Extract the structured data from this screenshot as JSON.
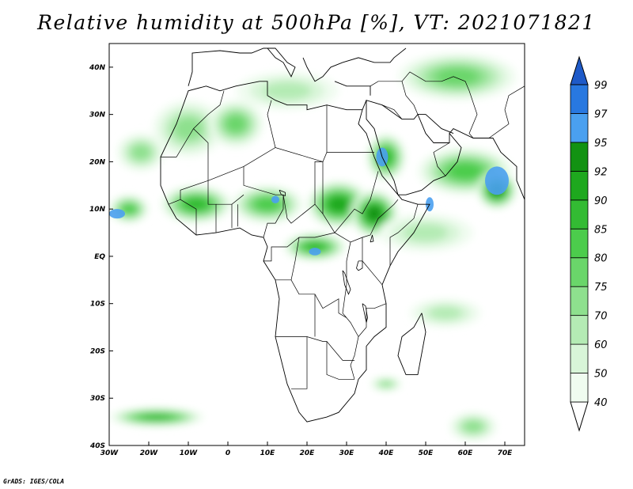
{
  "title": "Relative humidity at 500hPa [%], VT: 2021071821",
  "credit": "GrADS: IGES/COLA",
  "axes": {
    "lon_ticks": [
      {
        "value": -30,
        "label": "30W"
      },
      {
        "value": -20,
        "label": "20W"
      },
      {
        "value": -10,
        "label": "10W"
      },
      {
        "value": 0,
        "label": "0"
      },
      {
        "value": 10,
        "label": "10E"
      },
      {
        "value": 20,
        "label": "20E"
      },
      {
        "value": 30,
        "label": "30E"
      },
      {
        "value": 40,
        "label": "40E"
      },
      {
        "value": 50,
        "label": "50E"
      },
      {
        "value": 60,
        "label": "60E"
      },
      {
        "value": 70,
        "label": "70E"
      }
    ],
    "lat_ticks": [
      {
        "value": 40,
        "label": "40N"
      },
      {
        "value": 30,
        "label": "30N"
      },
      {
        "value": 20,
        "label": "20N"
      },
      {
        "value": 10,
        "label": "10N"
      },
      {
        "value": 0,
        "label": "EQ"
      },
      {
        "value": -10,
        "label": "10S"
      },
      {
        "value": -20,
        "label": "20S"
      },
      {
        "value": -30,
        "label": "30S"
      },
      {
        "value": -40,
        "label": "40S"
      }
    ],
    "lon_range": [
      -30,
      75
    ],
    "lat_range": [
      -40,
      45
    ]
  },
  "colorbar": {
    "levels": [
      {
        "label": "40",
        "color": "#f0fcf0"
      },
      {
        "label": "50",
        "color": "#d8f5d8"
      },
      {
        "label": "60",
        "color": "#b4ebb4"
      },
      {
        "label": "70",
        "color": "#8ee08e"
      },
      {
        "label": "75",
        "color": "#6ad66a"
      },
      {
        "label": "80",
        "color": "#4ccc4c"
      },
      {
        "label": "85",
        "color": "#33bb33"
      },
      {
        "label": "90",
        "color": "#1ea81e"
      },
      {
        "label": "92",
        "color": "#129212"
      },
      {
        "label": "95",
        "color": "#4aa0f0"
      },
      {
        "label": "97",
        "color": "#2878e0"
      },
      {
        "label": "99",
        "color": "#1e5ac8"
      }
    ],
    "under_color": "#ffffff",
    "over_color": "#1e5ac8"
  },
  "humidity_regions": [
    {
      "lon": 15,
      "lat": 35,
      "rlon": 13,
      "rlat": 4,
      "level": 2
    },
    {
      "lon": -10,
      "lat": 27,
      "rlon": 9,
      "rlat": 6,
      "level": 3
    },
    {
      "lon": 2,
      "lat": 28,
      "rlon": 7,
      "rlat": 5,
      "level": 4
    },
    {
      "lon": -22,
      "lat": 22,
      "rlon": 6,
      "rlat": 4,
      "level": 3
    },
    {
      "lon": -25,
      "lat": 10,
      "rlon": 5,
      "rlat": 3,
      "level": 5
    },
    {
      "lon": -8,
      "lat": 11,
      "rlon": 9,
      "rlat": 4,
      "level": 6
    },
    {
      "lon": 10,
      "lat": 11,
      "rlon": 9,
      "rlat": 4,
      "level": 5
    },
    {
      "lon": 28,
      "lat": 11,
      "rlon": 8,
      "rlat": 5,
      "level": 7
    },
    {
      "lon": 37,
      "lat": 9,
      "rlon": 6,
      "rlat": 5,
      "level": 8
    },
    {
      "lon": 22,
      "lat": 2,
      "rlon": 8,
      "rlat": 3,
      "level": 6
    },
    {
      "lon": 40,
      "lat": 21,
      "rlon": 5,
      "rlat": 5,
      "level": 6
    },
    {
      "lon": 60,
      "lat": 18,
      "rlon": 12,
      "rlat": 5,
      "level": 5
    },
    {
      "lon": 68,
      "lat": 14,
      "rlon": 5,
      "rlat": 4,
      "level": 8
    },
    {
      "lon": 50,
      "lat": 5,
      "rlon": 12,
      "rlat": 4,
      "level": 2
    },
    {
      "lon": 55,
      "lat": -12,
      "rlon": 9,
      "rlat": 3,
      "level": 2
    },
    {
      "lon": -18,
      "lat": -34,
      "rlon": 12,
      "rlat": 2,
      "level": 6
    },
    {
      "lon": 62,
      "lat": -36,
      "rlon": 6,
      "rlat": 3,
      "level": 3
    },
    {
      "lon": 40,
      "lat": -27,
      "rlon": 4,
      "rlat": 1.5,
      "level": 3
    },
    {
      "lon": 58,
      "lat": 38,
      "rlon": 15,
      "rlat": 5,
      "level": 4
    }
  ],
  "saturated_spots": [
    {
      "lon": 39,
      "lat": 21,
      "rlon": 1.5,
      "rlat": 2
    },
    {
      "lon": 68,
      "lat": 16,
      "rlon": 3,
      "rlat": 3
    },
    {
      "lon": -28,
      "lat": 9,
      "rlon": 2,
      "rlat": 1
    },
    {
      "lon": 51,
      "lat": 11,
      "rlon": 1,
      "rlat": 1.5
    },
    {
      "lon": 22,
      "lat": 1,
      "rlon": 1.5,
      "rlat": 0.8
    },
    {
      "lon": 12,
      "lat": 12,
      "rlon": 1,
      "rlat": 0.8
    }
  ],
  "coastlines": [
    [
      [
        -5.5,
        36
      ],
      [
        -10,
        35
      ],
      [
        -13,
        28
      ],
      [
        -17,
        21
      ],
      [
        -17,
        15
      ],
      [
        -15,
        11
      ],
      [
        -13,
        8
      ],
      [
        -8,
        4.5
      ],
      [
        -3,
        5
      ],
      [
        3,
        6
      ],
      [
        6,
        4.5
      ],
      [
        9,
        4
      ],
      [
        10,
        2
      ],
      [
        9,
        -1
      ],
      [
        12,
        -5
      ],
      [
        13,
        -9
      ],
      [
        12,
        -17
      ],
      [
        15,
        -27
      ],
      [
        18,
        -33
      ],
      [
        20,
        -35
      ],
      [
        25,
        -34
      ],
      [
        28,
        -33
      ],
      [
        32,
        -29
      ],
      [
        33,
        -26
      ],
      [
        35,
        -24
      ],
      [
        35,
        -19
      ],
      [
        37,
        -17
      ],
      [
        40,
        -15
      ],
      [
        40,
        -10
      ],
      [
        39,
        -6
      ],
      [
        41,
        -2
      ],
      [
        43,
        1
      ],
      [
        47,
        5
      ],
      [
        51,
        11
      ],
      [
        48,
        11
      ],
      [
        44,
        12
      ],
      [
        43,
        13
      ],
      [
        39,
        17
      ],
      [
        37,
        21
      ],
      [
        35,
        26
      ],
      [
        33,
        28
      ],
      [
        34,
        31
      ],
      [
        32,
        31
      ],
      [
        30,
        31
      ],
      [
        25,
        32
      ],
      [
        20,
        31
      ],
      [
        20,
        32
      ],
      [
        15,
        32
      ],
      [
        12,
        33
      ],
      [
        10,
        34
      ],
      [
        10,
        37
      ],
      [
        8,
        37
      ],
      [
        2,
        36
      ],
      [
        -2,
        35
      ],
      [
        -5.5,
        36
      ]
    ],
    [
      [
        49,
        -12
      ],
      [
        50,
        -16
      ],
      [
        48,
        -25
      ],
      [
        45,
        -25
      ],
      [
        43,
        -21
      ],
      [
        44,
        -17
      ],
      [
        47,
        -15
      ],
      [
        49,
        -12
      ]
    ],
    [
      [
        43,
        13
      ],
      [
        45,
        13
      ],
      [
        49,
        14
      ],
      [
        52,
        16
      ],
      [
        55,
        17
      ],
      [
        58,
        20
      ],
      [
        59,
        23
      ],
      [
        56,
        26
      ],
      [
        56,
        24
      ],
      [
        52,
        24
      ],
      [
        50,
        26
      ],
      [
        48,
        30
      ],
      [
        47,
        29
      ],
      [
        44,
        29
      ],
      [
        39,
        32
      ],
      [
        35,
        33
      ],
      [
        35,
        29
      ],
      [
        37,
        27
      ],
      [
        39,
        21
      ],
      [
        42,
        16
      ],
      [
        43,
        13
      ]
    ],
    [
      [
        56,
        26
      ],
      [
        57,
        27
      ],
      [
        62,
        25
      ],
      [
        67,
        25
      ],
      [
        69,
        22
      ],
      [
        73,
        19
      ],
      [
        73,
        16
      ],
      [
        75,
        12
      ]
    ],
    [
      [
        -10,
        36
      ],
      [
        -9,
        39
      ],
      [
        -9,
        43
      ],
      [
        -2,
        43.5
      ],
      [
        3,
        43
      ],
      [
        6,
        43
      ],
      [
        9,
        44
      ],
      [
        12,
        44
      ],
      [
        15,
        41
      ],
      [
        17,
        40
      ],
      [
        16,
        38
      ],
      [
        14,
        41
      ],
      [
        12,
        42
      ],
      [
        10,
        44
      ]
    ],
    [
      [
        19,
        42
      ],
      [
        20,
        40
      ],
      [
        22,
        37
      ],
      [
        24,
        38
      ],
      [
        26,
        40
      ],
      [
        29,
        41
      ],
      [
        33,
        42
      ],
      [
        37,
        41
      ],
      [
        41,
        41
      ],
      [
        42,
        42
      ],
      [
        45,
        44
      ]
    ],
    [
      [
        27,
        37
      ],
      [
        30,
        36
      ],
      [
        36,
        36
      ],
      [
        36,
        34
      ]
    ],
    [
      [
        35,
        33
      ],
      [
        34,
        31
      ]
    ],
    [
      [
        48,
        30
      ],
      [
        50,
        30
      ],
      [
        54,
        27
      ],
      [
        57,
        26
      ]
    ]
  ],
  "borders": [
    [
      [
        -17,
        21
      ],
      [
        -13,
        21
      ],
      [
        -8.7,
        27
      ],
      [
        -5,
        30
      ],
      [
        -2,
        32
      ],
      [
        -1,
        35
      ]
    ],
    [
      [
        -8.7,
        27
      ],
      [
        -5,
        24
      ],
      [
        -5,
        16
      ],
      [
        -12,
        14
      ],
      [
        -12,
        12
      ],
      [
        -15,
        11
      ]
    ],
    [
      [
        -5,
        16
      ],
      [
        4,
        19
      ],
      [
        12,
        23
      ],
      [
        20,
        21
      ],
      [
        24,
        20
      ],
      [
        25,
        22
      ],
      [
        25,
        32
      ]
    ],
    [
      [
        11,
        33
      ],
      [
        10,
        30
      ],
      [
        12,
        23
      ]
    ],
    [
      [
        4,
        19
      ],
      [
        4,
        15
      ],
      [
        12,
        13
      ],
      [
        14,
        13
      ],
      [
        15,
        8
      ],
      [
        16,
        7
      ],
      [
        22,
        11
      ],
      [
        22,
        20
      ],
      [
        24,
        20
      ]
    ],
    [
      [
        14,
        13
      ],
      [
        14,
        10
      ],
      [
        12,
        7
      ],
      [
        10,
        7
      ],
      [
        9,
        4
      ]
    ],
    [
      [
        -5,
        16
      ],
      [
        -5,
        11
      ],
      [
        -3,
        11
      ],
      [
        -3,
        5
      ]
    ],
    [
      [
        -12,
        12
      ],
      [
        -8,
        10
      ],
      [
        -8,
        7
      ],
      [
        -8,
        4.5
      ]
    ],
    [
      [
        1,
        11
      ],
      [
        1,
        6
      ]
    ],
    [
      [
        2.5,
        11
      ],
      [
        2.5,
        6.3
      ]
    ],
    [
      [
        -3,
        11
      ],
      [
        1,
        11
      ],
      [
        4,
        13
      ]
    ],
    [
      [
        25,
        22
      ],
      [
        37,
        22
      ]
    ],
    [
      [
        22,
        11
      ],
      [
        24,
        9
      ],
      [
        27,
        5
      ],
      [
        31,
        3
      ],
      [
        34,
        4
      ],
      [
        36,
        4.5
      ],
      [
        38,
        8
      ],
      [
        42,
        11
      ],
      [
        43,
        12
      ]
    ],
    [
      [
        24,
        20
      ],
      [
        24,
        9
      ]
    ],
    [
      [
        27,
        5
      ],
      [
        32,
        10
      ],
      [
        34,
        9
      ],
      [
        36,
        12
      ],
      [
        37,
        15
      ],
      [
        38,
        18
      ]
    ],
    [
      [
        31,
        3
      ],
      [
        30,
        -1
      ],
      [
        30,
        -6
      ],
      [
        29,
        -12
      ],
      [
        31,
        -14
      ],
      [
        33,
        -17
      ],
      [
        32,
        -21
      ],
      [
        31,
        -23
      ],
      [
        32,
        -26
      ]
    ],
    [
      [
        34,
        4
      ],
      [
        34,
        -1
      ],
      [
        37,
        -4
      ],
      [
        39,
        -6
      ]
    ],
    [
      [
        41,
        -2
      ],
      [
        41,
        4
      ],
      [
        43,
        5
      ],
      [
        47,
        8
      ],
      [
        48,
        11
      ]
    ],
    [
      [
        12,
        -5
      ],
      [
        16,
        -5
      ],
      [
        18,
        -8
      ],
      [
        22,
        -8
      ],
      [
        24,
        -11
      ],
      [
        28,
        -9
      ],
      [
        28,
        -12
      ],
      [
        30,
        -13
      ]
    ],
    [
      [
        12,
        -17
      ],
      [
        20,
        -17
      ],
      [
        24,
        -18
      ],
      [
        25,
        -18
      ],
      [
        27,
        -20
      ],
      [
        29,
        -22
      ],
      [
        32,
        -22
      ]
    ],
    [
      [
        20,
        -17
      ],
      [
        20,
        -22
      ],
      [
        20,
        -28
      ],
      [
        16,
        -28
      ]
    ],
    [
      [
        25,
        -18
      ],
      [
        25,
        -25
      ],
      [
        28,
        -26
      ],
      [
        32,
        -26
      ]
    ],
    [
      [
        22,
        -8
      ],
      [
        22,
        -13
      ],
      [
        22,
        -17
      ]
    ],
    [
      [
        9,
        -1
      ],
      [
        11,
        -1
      ],
      [
        11,
        2
      ],
      [
        15,
        2
      ],
      [
        18,
        4
      ],
      [
        22,
        4
      ],
      [
        27,
        5
      ]
    ],
    [
      [
        18,
        4
      ],
      [
        17,
        -1
      ],
      [
        16,
        -5
      ]
    ],
    [
      [
        35,
        -11
      ],
      [
        35,
        -15
      ],
      [
        33,
        -17
      ]
    ],
    [
      [
        40,
        -10
      ],
      [
        37,
        -11
      ],
      [
        35,
        -11
      ]
    ],
    [
      [
        36,
        36
      ],
      [
        38,
        37
      ],
      [
        42,
        37
      ],
      [
        44,
        37
      ],
      [
        45,
        34
      ],
      [
        47,
        32
      ],
      [
        48,
        30
      ]
    ],
    [
      [
        39,
        32
      ],
      [
        42,
        31
      ],
      [
        44,
        29
      ]
    ],
    [
      [
        55,
        17
      ],
      [
        53,
        19
      ],
      [
        52,
        22
      ],
      [
        56,
        24
      ]
    ],
    [
      [
        44,
        37
      ],
      [
        46,
        39
      ],
      [
        48,
        38
      ],
      [
        50,
        37
      ],
      [
        54,
        37
      ],
      [
        57,
        38
      ],
      [
        60,
        37
      ],
      [
        61,
        35
      ],
      [
        63,
        30
      ],
      [
        61,
        26
      ],
      [
        62,
        25
      ]
    ],
    [
      [
        66,
        25
      ],
      [
        71,
        28
      ],
      [
        70,
        31
      ],
      [
        71,
        34
      ],
      [
        75,
        36
      ]
    ]
  ],
  "lakes": [
    [
      [
        33,
        -1
      ],
      [
        32.5,
        -2.5
      ],
      [
        33,
        -3
      ],
      [
        34,
        -2.5
      ],
      [
        34,
        -1
      ],
      [
        33,
        -1
      ]
    ],
    [
      [
        29,
        -3
      ],
      [
        29.5,
        -6
      ],
      [
        30.5,
        -8
      ],
      [
        31,
        -7
      ],
      [
        29.5,
        -3.5
      ],
      [
        29,
        -3
      ]
    ],
    [
      [
        34,
        -10
      ],
      [
        34.5,
        -12
      ],
      [
        35,
        -14
      ],
      [
        35.3,
        -13
      ],
      [
        34.8,
        -10.5
      ],
      [
        34,
        -10
      ]
    ],
    [
      [
        13,
        14
      ],
      [
        14.5,
        13.5
      ],
      [
        14.5,
        12.8
      ],
      [
        13.5,
        13
      ],
      [
        13,
        14
      ]
    ],
    [
      [
        36,
        3
      ],
      [
        36.5,
        4.5
      ],
      [
        36.8,
        3.2
      ],
      [
        36,
        3
      ]
    ]
  ]
}
